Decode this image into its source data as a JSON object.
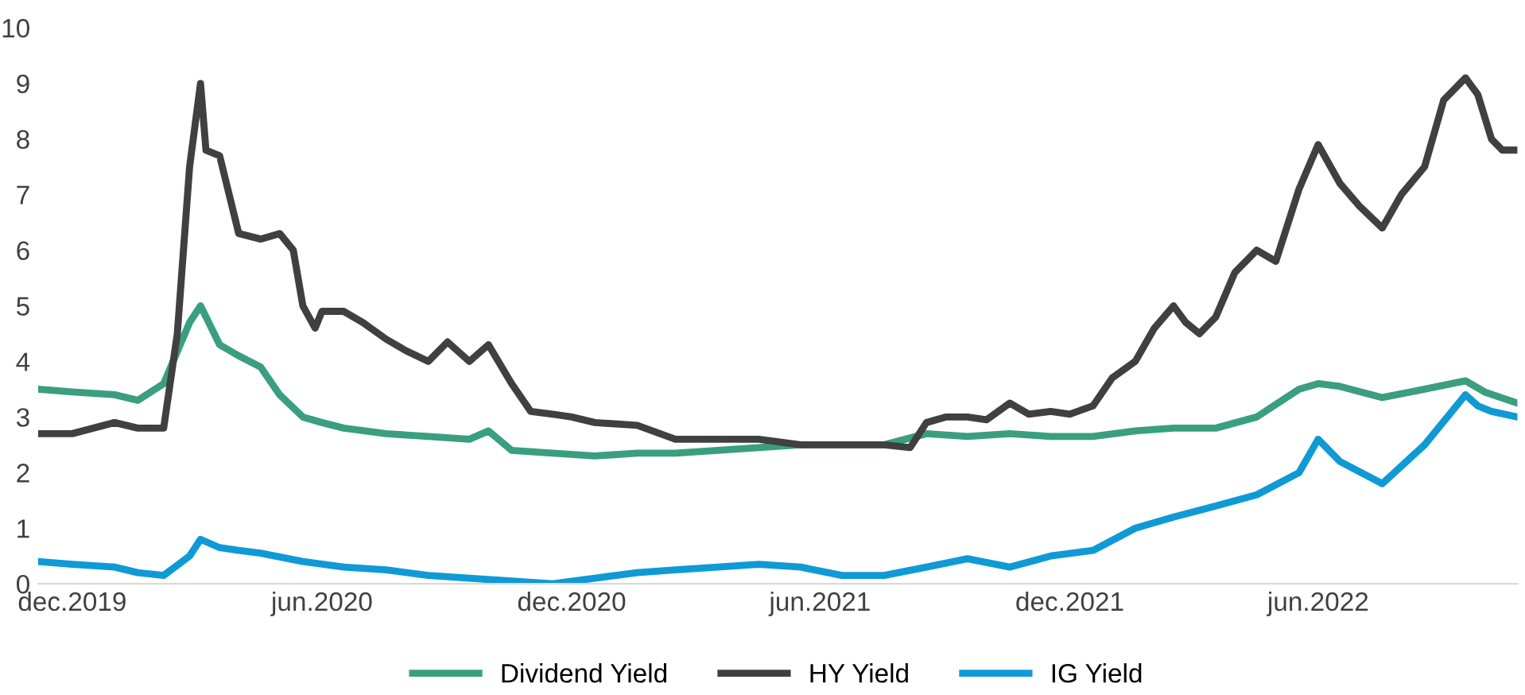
{
  "chart_data": {
    "type": "line",
    "ylim": [
      0,
      10
    ],
    "yticks": [
      0,
      1,
      2,
      3,
      4,
      5,
      6,
      7,
      8,
      9,
      10
    ],
    "xlim": [
      "2019-11-20",
      "2022-11-08"
    ],
    "xticks": [
      {
        "value": "2019-12-15",
        "label": "dec.2019"
      },
      {
        "value": "2020-06-15",
        "label": "jun.2020"
      },
      {
        "value": "2020-12-15",
        "label": "dec.2020"
      },
      {
        "value": "2021-06-15",
        "label": "jun.2021"
      },
      {
        "value": "2021-12-15",
        "label": "dec.2021"
      },
      {
        "value": "2022-06-15",
        "label": "jun.2022"
      }
    ],
    "grid": false,
    "legend": "bottom",
    "line_style": "solid",
    "marker": "none",
    "series": [
      {
        "name": "Dividend Yield",
        "color": "#3a9f7e",
        "x": [
          "2019-11-20",
          "2019-12-15",
          "2020-01-15",
          "2020-02-01",
          "2020-02-20",
          "2020-03-10",
          "2020-03-18",
          "2020-04-01",
          "2020-04-15",
          "2020-05-01",
          "2020-05-15",
          "2020-06-01",
          "2020-06-15",
          "2020-07-01",
          "2020-08-01",
          "2020-09-01",
          "2020-10-01",
          "2020-10-15",
          "2020-11-01",
          "2020-12-01",
          "2021-01-01",
          "2021-02-01",
          "2021-03-01",
          "2021-04-01",
          "2021-05-01",
          "2021-06-01",
          "2021-07-01",
          "2021-08-01",
          "2021-09-01",
          "2021-10-01",
          "2021-11-01",
          "2021-12-01",
          "2022-01-01",
          "2022-02-01",
          "2022-03-01",
          "2022-04-01",
          "2022-05-01",
          "2022-06-01",
          "2022-06-15",
          "2022-07-01",
          "2022-08-01",
          "2022-09-01",
          "2022-10-01",
          "2022-10-15",
          "2022-11-08"
        ],
        "values": [
          3.5,
          3.45,
          3.4,
          3.3,
          3.6,
          4.7,
          5.0,
          4.3,
          4.1,
          3.9,
          3.4,
          3.0,
          2.9,
          2.8,
          2.7,
          2.65,
          2.6,
          2.75,
          2.4,
          2.35,
          2.3,
          2.35,
          2.35,
          2.4,
          2.45,
          2.5,
          2.5,
          2.5,
          2.7,
          2.65,
          2.7,
          2.65,
          2.65,
          2.75,
          2.8,
          2.8,
          3.0,
          3.5,
          3.6,
          3.55,
          3.35,
          3.5,
          3.65,
          3.45,
          3.25
        ]
      },
      {
        "name": "HY Yield",
        "color": "#404040",
        "x": [
          "2019-11-20",
          "2019-12-15",
          "2020-01-15",
          "2020-02-01",
          "2020-02-20",
          "2020-03-01",
          "2020-03-10",
          "2020-03-18",
          "2020-03-22",
          "2020-04-01",
          "2020-04-15",
          "2020-05-01",
          "2020-05-15",
          "2020-05-25",
          "2020-06-01",
          "2020-06-10",
          "2020-06-15",
          "2020-07-01",
          "2020-07-15",
          "2020-08-01",
          "2020-08-15",
          "2020-09-01",
          "2020-09-15",
          "2020-10-01",
          "2020-10-15",
          "2020-11-01",
          "2020-11-15",
          "2020-12-01",
          "2020-12-15",
          "2021-01-01",
          "2021-02-01",
          "2021-03-01",
          "2021-04-01",
          "2021-05-01",
          "2021-06-01",
          "2021-07-01",
          "2021-08-01",
          "2021-08-20",
          "2021-09-01",
          "2021-09-15",
          "2021-10-01",
          "2021-10-15",
          "2021-11-01",
          "2021-11-15",
          "2021-12-01",
          "2021-12-15",
          "2022-01-01",
          "2022-01-15",
          "2022-02-01",
          "2022-02-15",
          "2022-03-01",
          "2022-03-10",
          "2022-03-20",
          "2022-04-01",
          "2022-04-15",
          "2022-05-01",
          "2022-05-15",
          "2022-06-01",
          "2022-06-15",
          "2022-07-01",
          "2022-07-15",
          "2022-08-01",
          "2022-08-15",
          "2022-09-01",
          "2022-09-15",
          "2022-10-01",
          "2022-10-10",
          "2022-10-20",
          "2022-10-28",
          "2022-11-08"
        ],
        "values": [
          2.7,
          2.7,
          2.9,
          2.8,
          2.8,
          4.5,
          7.5,
          9.0,
          7.8,
          7.7,
          6.3,
          6.2,
          6.3,
          6.0,
          5.0,
          4.6,
          4.9,
          4.9,
          4.7,
          4.4,
          4.2,
          4.0,
          4.35,
          4.0,
          4.3,
          3.6,
          3.1,
          3.05,
          3.0,
          2.9,
          2.85,
          2.6,
          2.6,
          2.6,
          2.5,
          2.5,
          2.5,
          2.45,
          2.9,
          3.0,
          3.0,
          2.95,
          3.25,
          3.05,
          3.1,
          3.05,
          3.2,
          3.7,
          4.0,
          4.6,
          5.0,
          4.7,
          4.5,
          4.8,
          5.6,
          6.0,
          5.8,
          7.1,
          7.9,
          7.2,
          6.8,
          6.4,
          7.0,
          7.5,
          8.7,
          9.1,
          8.8,
          8.0,
          7.8,
          7.8
        ]
      },
      {
        "name": "IG Yield",
        "color": "#0f9ad6",
        "x": [
          "2019-11-20",
          "2019-12-15",
          "2020-01-15",
          "2020-02-01",
          "2020-02-20",
          "2020-03-10",
          "2020-03-18",
          "2020-04-01",
          "2020-04-15",
          "2020-05-01",
          "2020-06-01",
          "2020-07-01",
          "2020-08-01",
          "2020-09-01",
          "2020-10-01",
          "2020-11-01",
          "2020-12-01",
          "2021-01-01",
          "2021-02-01",
          "2021-03-01",
          "2021-04-01",
          "2021-05-01",
          "2021-06-01",
          "2021-07-01",
          "2021-08-01",
          "2021-09-01",
          "2021-10-01",
          "2021-11-01",
          "2021-12-01",
          "2022-01-01",
          "2022-02-01",
          "2022-03-01",
          "2022-04-01",
          "2022-05-01",
          "2022-06-01",
          "2022-06-15",
          "2022-07-01",
          "2022-08-01",
          "2022-09-01",
          "2022-10-01",
          "2022-10-10",
          "2022-10-20",
          "2022-11-08"
        ],
        "values": [
          0.4,
          0.35,
          0.3,
          0.2,
          0.15,
          0.5,
          0.8,
          0.65,
          0.6,
          0.55,
          0.4,
          0.3,
          0.25,
          0.15,
          0.1,
          0.05,
          0.0,
          0.1,
          0.2,
          0.25,
          0.3,
          0.35,
          0.3,
          0.15,
          0.15,
          0.3,
          0.45,
          0.3,
          0.5,
          0.6,
          1.0,
          1.2,
          1.4,
          1.6,
          2.0,
          2.6,
          2.2,
          1.8,
          2.5,
          3.4,
          3.2,
          3.1,
          3.0
        ]
      }
    ]
  }
}
